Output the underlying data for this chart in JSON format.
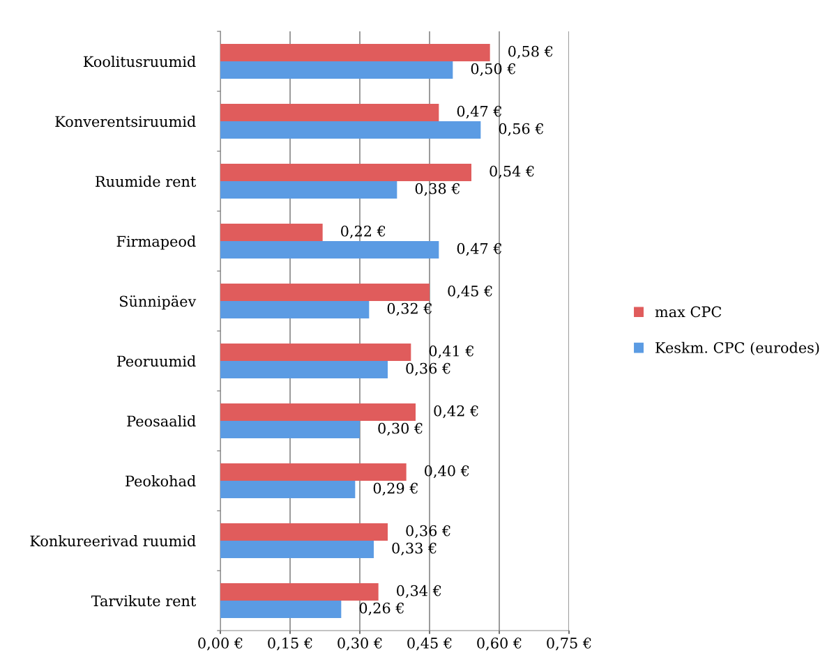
{
  "chart_data": {
    "type": "bar",
    "orientation": "horizontal",
    "categories": [
      "Koolitusruumid",
      "Konverentsiruumid",
      "Ruumide rent",
      "Firmapeod",
      "Sünnipäev",
      "Peoruumid",
      "Peosaalid",
      "Peokohad",
      "Konkureerivad ruumid",
      "Tarvikute rent"
    ],
    "series": [
      {
        "name": "max CPC",
        "color": "#e05c5c",
        "values": [
          0.58,
          0.47,
          0.54,
          0.22,
          0.45,
          0.41,
          0.42,
          0.4,
          0.36,
          0.34
        ],
        "value_labels": [
          "0,58 €",
          "0,47 €",
          "0,54 €",
          "0,22 €",
          "0,45 €",
          "0,41 €",
          "0,42 €",
          "0,40 €",
          "0,36 €",
          "0,34 €"
        ]
      },
      {
        "name": "Keskm. CPC (eurodes)",
        "color": "#5b9be3",
        "values": [
          0.5,
          0.56,
          0.38,
          0.47,
          0.32,
          0.36,
          0.3,
          0.29,
          0.33,
          0.26
        ],
        "value_labels": [
          "0,50 €",
          "0,56 €",
          "0,38 €",
          "0,47 €",
          "0,32 €",
          "0,36 €",
          "0,30 €",
          "0,29 €",
          "0,33 €",
          "0,26 €"
        ]
      }
    ],
    "xlim": [
      0,
      0.75
    ],
    "xticks": [
      {
        "value": 0,
        "label": "0,00 €"
      },
      {
        "value": 0.15,
        "label": "0,15 €"
      },
      {
        "value": 0.3,
        "label": "0,30 €"
      },
      {
        "value": 0.45,
        "label": "0,45 €"
      },
      {
        "value": 0.6,
        "label": "0,60 €"
      },
      {
        "value": 0.75,
        "label": "0,75 €"
      }
    ],
    "grid": "x",
    "legend": "right"
  }
}
